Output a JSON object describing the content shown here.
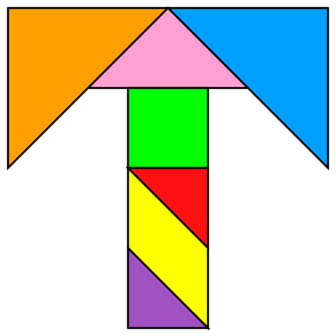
{
  "puzzle": {
    "figure": "T shape",
    "outline_color": "#000000",
    "background_color": "#ffffff",
    "pieces": [
      {
        "name": "large-triangle-left",
        "kind": "large triangle",
        "color": "#ffa000"
      },
      {
        "name": "large-triangle-right",
        "kind": "large triangle",
        "color": "#00a0ff"
      },
      {
        "name": "medium-triangle",
        "kind": "medium triangle",
        "color": "#ffa0d2"
      },
      {
        "name": "square",
        "kind": "square",
        "color": "#00ff00"
      },
      {
        "name": "small-triangle-top",
        "kind": "small triangle",
        "color": "#ff1010"
      },
      {
        "name": "parallelogram",
        "kind": "parallelogram",
        "color": "#ffff00"
      },
      {
        "name": "small-triangle-bottom",
        "kind": "small triangle",
        "color": "#a050c0"
      }
    ]
  }
}
